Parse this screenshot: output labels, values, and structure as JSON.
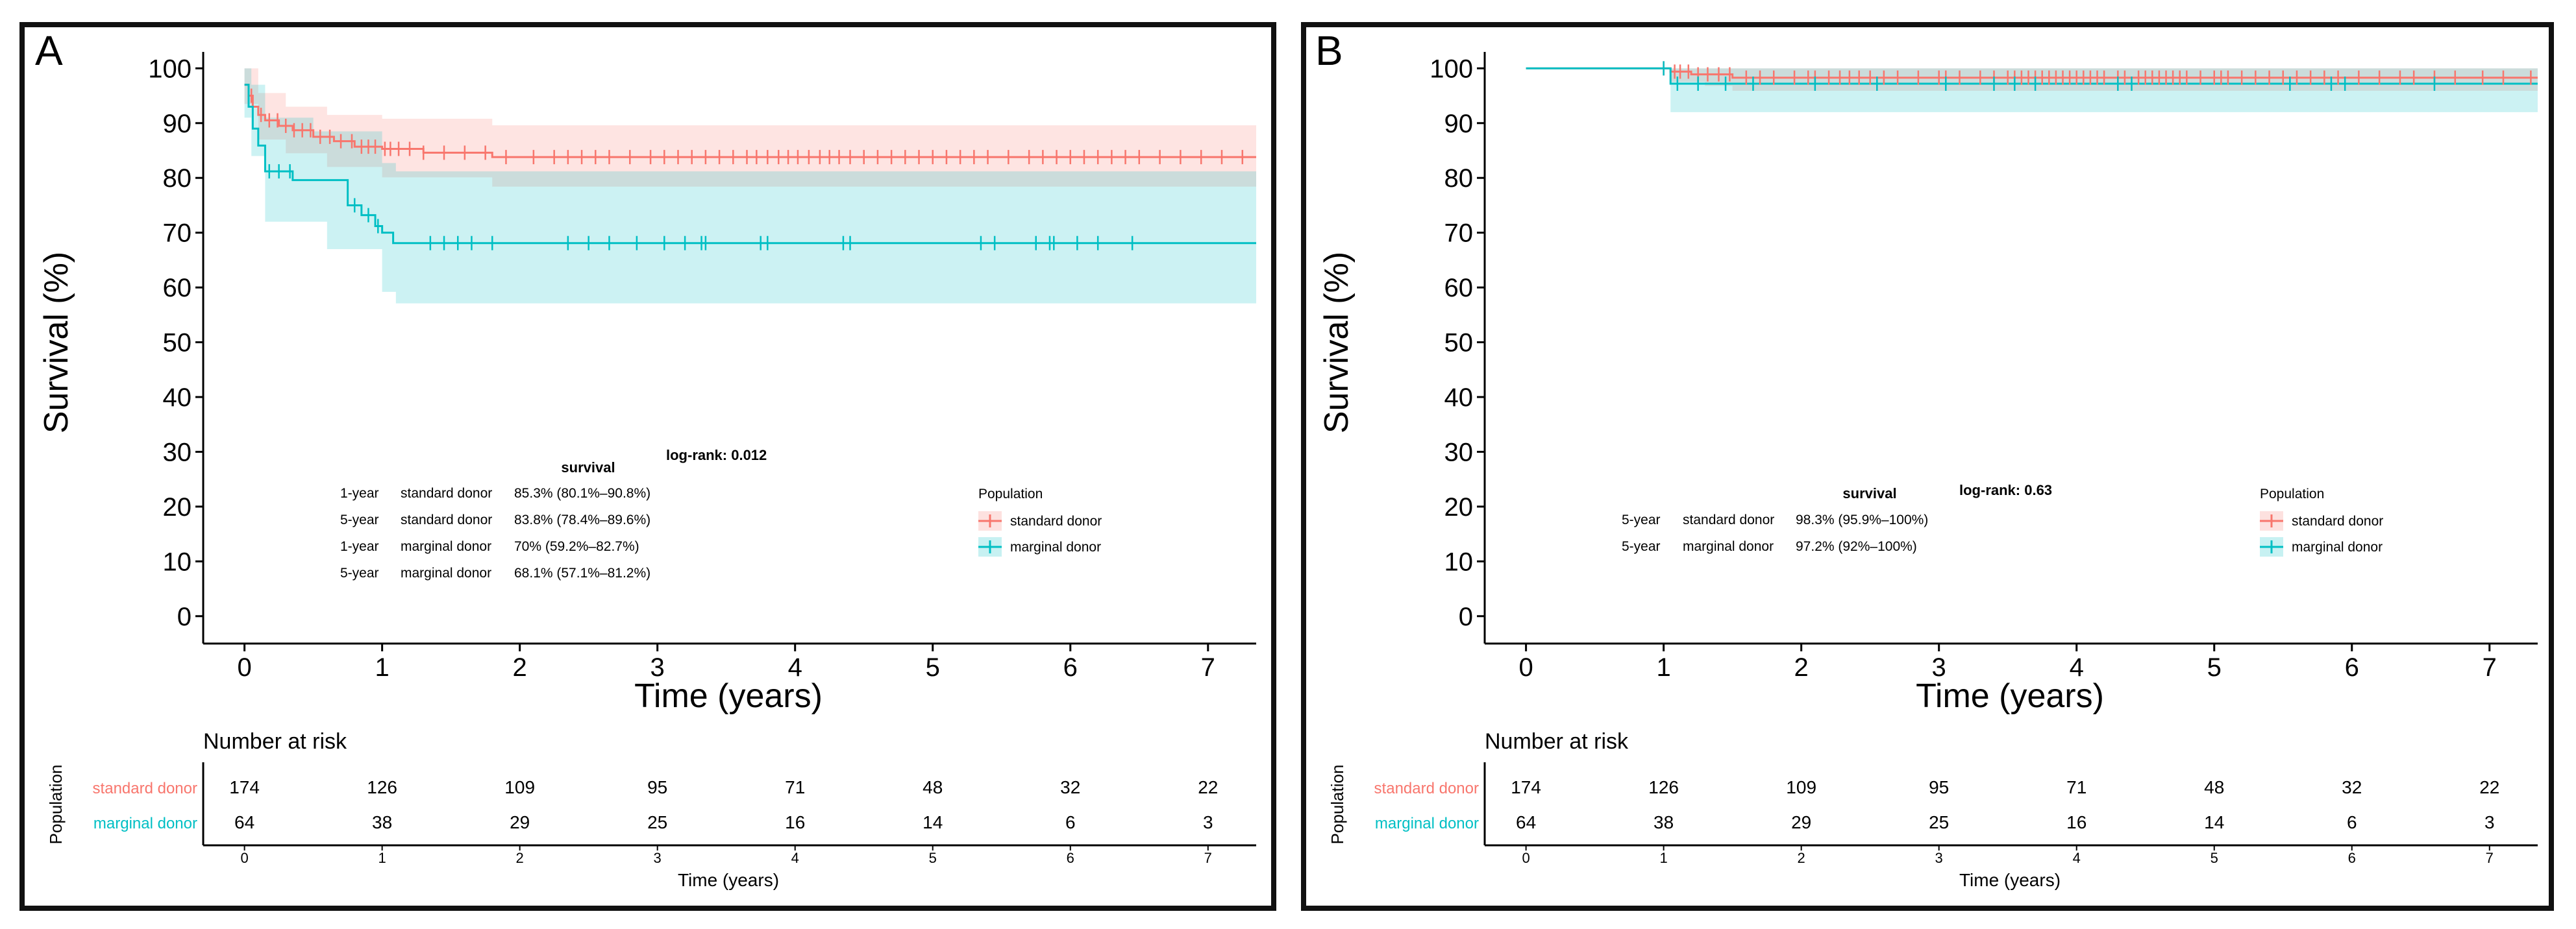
{
  "colors": {
    "standard": "#f8766d",
    "marginal": "#00bfc4",
    "standard_band": "#f8766d",
    "marginal_band": "#00bfc4"
  },
  "chart_data": [
    {
      "panel_label": "A",
      "type": "line",
      "title": "",
      "xlabel": "Time (years)",
      "ylabel": "Survival (%)",
      "xlim": [
        -0.3,
        7.35
      ],
      "ylim": [
        -5,
        103
      ],
      "xticks": [
        "0",
        "1",
        "2",
        "3",
        "4",
        "5",
        "6",
        "7"
      ],
      "yticks": [
        "0",
        "10",
        "20",
        "30",
        "40",
        "50",
        "60",
        "70",
        "80",
        "90",
        "100"
      ],
      "series": [
        {
          "name": "standard donor",
          "color": "#f8766d",
          "steps": [
            [
              0,
              97
            ],
            [
              0.03,
              95
            ],
            [
              0.06,
              93
            ],
            [
              0.1,
              91.5
            ],
            [
              0.15,
              90.5
            ],
            [
              0.25,
              89.5
            ],
            [
              0.35,
              88.7
            ],
            [
              0.5,
              87.5
            ],
            [
              0.65,
              86.7
            ],
            [
              0.8,
              85.7
            ],
            [
              1.0,
              85.3
            ],
            [
              1.3,
              84.6
            ],
            [
              1.8,
              83.8
            ],
            [
              7.35,
              83.8
            ]
          ],
          "ci_upper": [
            [
              0,
              100
            ],
            [
              0.1,
              95.5
            ],
            [
              0.3,
              93
            ],
            [
              0.6,
              91.5
            ],
            [
              1.0,
              90.8
            ],
            [
              1.8,
              89.6
            ],
            [
              7.35,
              89.6
            ]
          ],
          "ci_lower": [
            [
              0,
              93.5
            ],
            [
              0.1,
              87
            ],
            [
              0.3,
              84.5
            ],
            [
              0.6,
              82
            ],
            [
              1.0,
              80.1
            ],
            [
              1.8,
              78.4
            ],
            [
              7.35,
              78.4
            ]
          ],
          "censor_x": [
            0.05,
            0.12,
            0.18,
            0.24,
            0.3,
            0.36,
            0.42,
            0.48,
            0.55,
            0.62,
            0.7,
            0.78,
            0.85,
            0.9,
            0.95,
            1.02,
            1.06,
            1.12,
            1.2,
            1.3,
            1.45,
            1.6,
            1.75,
            1.9,
            2.1,
            2.25,
            2.35,
            2.45,
            2.55,
            2.65,
            2.8,
            2.95,
            3.05,
            3.15,
            3.25,
            3.35,
            3.45,
            3.55,
            3.65,
            3.72,
            3.8,
            3.88,
            3.95,
            4.02,
            4.1,
            4.18,
            4.25,
            4.32,
            4.4,
            4.5,
            4.6,
            4.7,
            4.8,
            4.9,
            5.0,
            5.1,
            5.2,
            5.3,
            5.4,
            5.55,
            5.7,
            5.8,
            5.9,
            6.0,
            6.1,
            6.2,
            6.3,
            6.4,
            6.5,
            6.65,
            6.8,
            6.95,
            7.1,
            7.25
          ]
        },
        {
          "name": "marginal donor",
          "color": "#00bfc4",
          "steps": [
            [
              0,
              97
            ],
            [
              0.03,
              93
            ],
            [
              0.06,
              89
            ],
            [
              0.1,
              85.9
            ],
            [
              0.15,
              81.2
            ],
            [
              0.35,
              79.6
            ],
            [
              0.75,
              75
            ],
            [
              0.85,
              73.2
            ],
            [
              0.95,
              71.2
            ],
            [
              1.0,
              70
            ],
            [
              1.08,
              68.1
            ],
            [
              7.35,
              68.1
            ]
          ],
          "ci_upper": [
            [
              0,
              100
            ],
            [
              0.05,
              97
            ],
            [
              0.15,
              91
            ],
            [
              0.5,
              88.5
            ],
            [
              1.0,
              82.7
            ],
            [
              1.1,
              81.2
            ],
            [
              7.35,
              81.2
            ]
          ],
          "ci_lower": [
            [
              0,
              91
            ],
            [
              0.05,
              84
            ],
            [
              0.15,
              72
            ],
            [
              0.6,
              67
            ],
            [
              1.0,
              59.2
            ],
            [
              1.1,
              57.1
            ],
            [
              7.35,
              57.1
            ]
          ],
          "censor_x": [
            0.18,
            0.25,
            0.33,
            0.8,
            0.9,
            0.97,
            1.35,
            1.45,
            1.55,
            1.65,
            1.8,
            2.35,
            2.5,
            2.65,
            2.85,
            3.05,
            3.2,
            3.32,
            3.35,
            3.75,
            3.8,
            4.35,
            4.4,
            5.35,
            5.45,
            5.75,
            5.85,
            5.88,
            6.05,
            6.2,
            6.45
          ]
        }
      ],
      "summary_table": {
        "header": "survival",
        "logrank": "log-rank: 0.012",
        "rows": [
          {
            "time": "1-year",
            "group": "standard donor",
            "value": "85.3% (80.1%–90.8%)"
          },
          {
            "time": "5-year",
            "group": "standard donor",
            "value": "83.8% (78.4%–89.6%)"
          },
          {
            "time": "1-year",
            "group": "marginal donor",
            "value": "70% (59.2%–82.7%)"
          },
          {
            "time": "5-year",
            "group": "marginal donor",
            "value": "68.1% (57.1%–81.2%)"
          }
        ]
      },
      "legend": {
        "title": "Population",
        "entries": [
          "standard donor",
          "marginal donor"
        ]
      },
      "risk_table": {
        "title": "Number at risk",
        "ylabel": "Population",
        "xlabel": "Time (years)",
        "rows": [
          {
            "name": "standard donor",
            "values": [
              "174",
              "126",
              "109",
              "95",
              "71",
              "48",
              "32",
              "22"
            ]
          },
          {
            "name": "marginal donor",
            "values": [
              "64",
              "38",
              "29",
              "25",
              "16",
              "14",
              "6",
              "3"
            ]
          }
        ]
      }
    },
    {
      "panel_label": "B",
      "type": "line",
      "title": "",
      "xlabel": "Time (years)",
      "ylabel": "Survival (%)",
      "xlim": [
        -0.3,
        7.35
      ],
      "ylim": [
        -5,
        103
      ],
      "xticks": [
        "0",
        "1",
        "2",
        "3",
        "4",
        "5",
        "6",
        "7"
      ],
      "yticks": [
        "0",
        "10",
        "20",
        "30",
        "40",
        "50",
        "60",
        "70",
        "80",
        "90",
        "100"
      ],
      "series": [
        {
          "name": "standard donor",
          "color": "#f8766d",
          "steps": [
            [
              0,
              100
            ],
            [
              1.05,
              99.4
            ],
            [
              1.2,
              98.9
            ],
            [
              1.5,
              98.3
            ],
            [
              7.35,
              98.3
            ]
          ],
          "ci_upper": [
            [
              0,
              100
            ],
            [
              7.35,
              100
            ]
          ],
          "ci_lower": [
            [
              0,
              100
            ],
            [
              1.05,
              97.5
            ],
            [
              1.3,
              96.8
            ],
            [
              1.5,
              95.9
            ],
            [
              7.35,
              95.9
            ]
          ],
          "censor_x": [
            1.0,
            1.08,
            1.12,
            1.18,
            1.25,
            1.32,
            1.4,
            1.48,
            1.6,
            1.7,
            1.8,
            1.95,
            2.05,
            2.1,
            2.2,
            2.28,
            2.35,
            2.42,
            2.5,
            2.6,
            2.7,
            2.85,
            3.0,
            3.05,
            3.15,
            3.3,
            3.4,
            3.5,
            3.55,
            3.6,
            3.65,
            3.7,
            3.75,
            3.8,
            3.85,
            3.9,
            3.95,
            4.0,
            4.05,
            4.1,
            4.15,
            4.2,
            4.3,
            4.35,
            4.45,
            4.5,
            4.55,
            4.6,
            4.65,
            4.7,
            4.75,
            4.8,
            4.9,
            5.0,
            5.05,
            5.1,
            5.2,
            5.3,
            5.4,
            5.5,
            5.6,
            5.7,
            5.8,
            5.9,
            6.05,
            6.2,
            6.35,
            6.45,
            6.6,
            6.75,
            6.95,
            7.1,
            7.3
          ]
        },
        {
          "name": "marginal donor",
          "color": "#00bfc4",
          "steps": [
            [
              0,
              100
            ],
            [
              1.05,
              97.2
            ],
            [
              7.35,
              97.2
            ]
          ],
          "ci_upper": [
            [
              0,
              100
            ],
            [
              7.35,
              100
            ]
          ],
          "ci_lower": [
            [
              0,
              100
            ],
            [
              1.05,
              92
            ],
            [
              7.35,
              92
            ]
          ],
          "censor_x": [
            1.0,
            1.1,
            1.25,
            1.45,
            1.65,
            2.1,
            2.55,
            3.05,
            3.4,
            3.55,
            3.7,
            4.3,
            4.4,
            5.55,
            5.85,
            5.95,
            6.6
          ]
        }
      ],
      "summary_table": {
        "header": "survival",
        "logrank": "log-rank: 0.63",
        "rows": [
          {
            "time": "5-year",
            "group": "standard donor",
            "value": "98.3% (95.9%–100%)"
          },
          {
            "time": "5-year",
            "group": "marginal donor",
            "value": "97.2% (92%–100%)"
          }
        ]
      },
      "legend": {
        "title": "Population",
        "entries": [
          "standard donor",
          "marginal donor"
        ]
      },
      "risk_table": {
        "title": "Number at risk",
        "ylabel": "Population",
        "xlabel": "Time (years)",
        "rows": [
          {
            "name": "standard donor",
            "values": [
              "174",
              "126",
              "109",
              "95",
              "71",
              "48",
              "32",
              "22"
            ]
          },
          {
            "name": "marginal donor",
            "values": [
              "64",
              "38",
              "29",
              "25",
              "16",
              "14",
              "6",
              "3"
            ]
          }
        ]
      }
    }
  ]
}
